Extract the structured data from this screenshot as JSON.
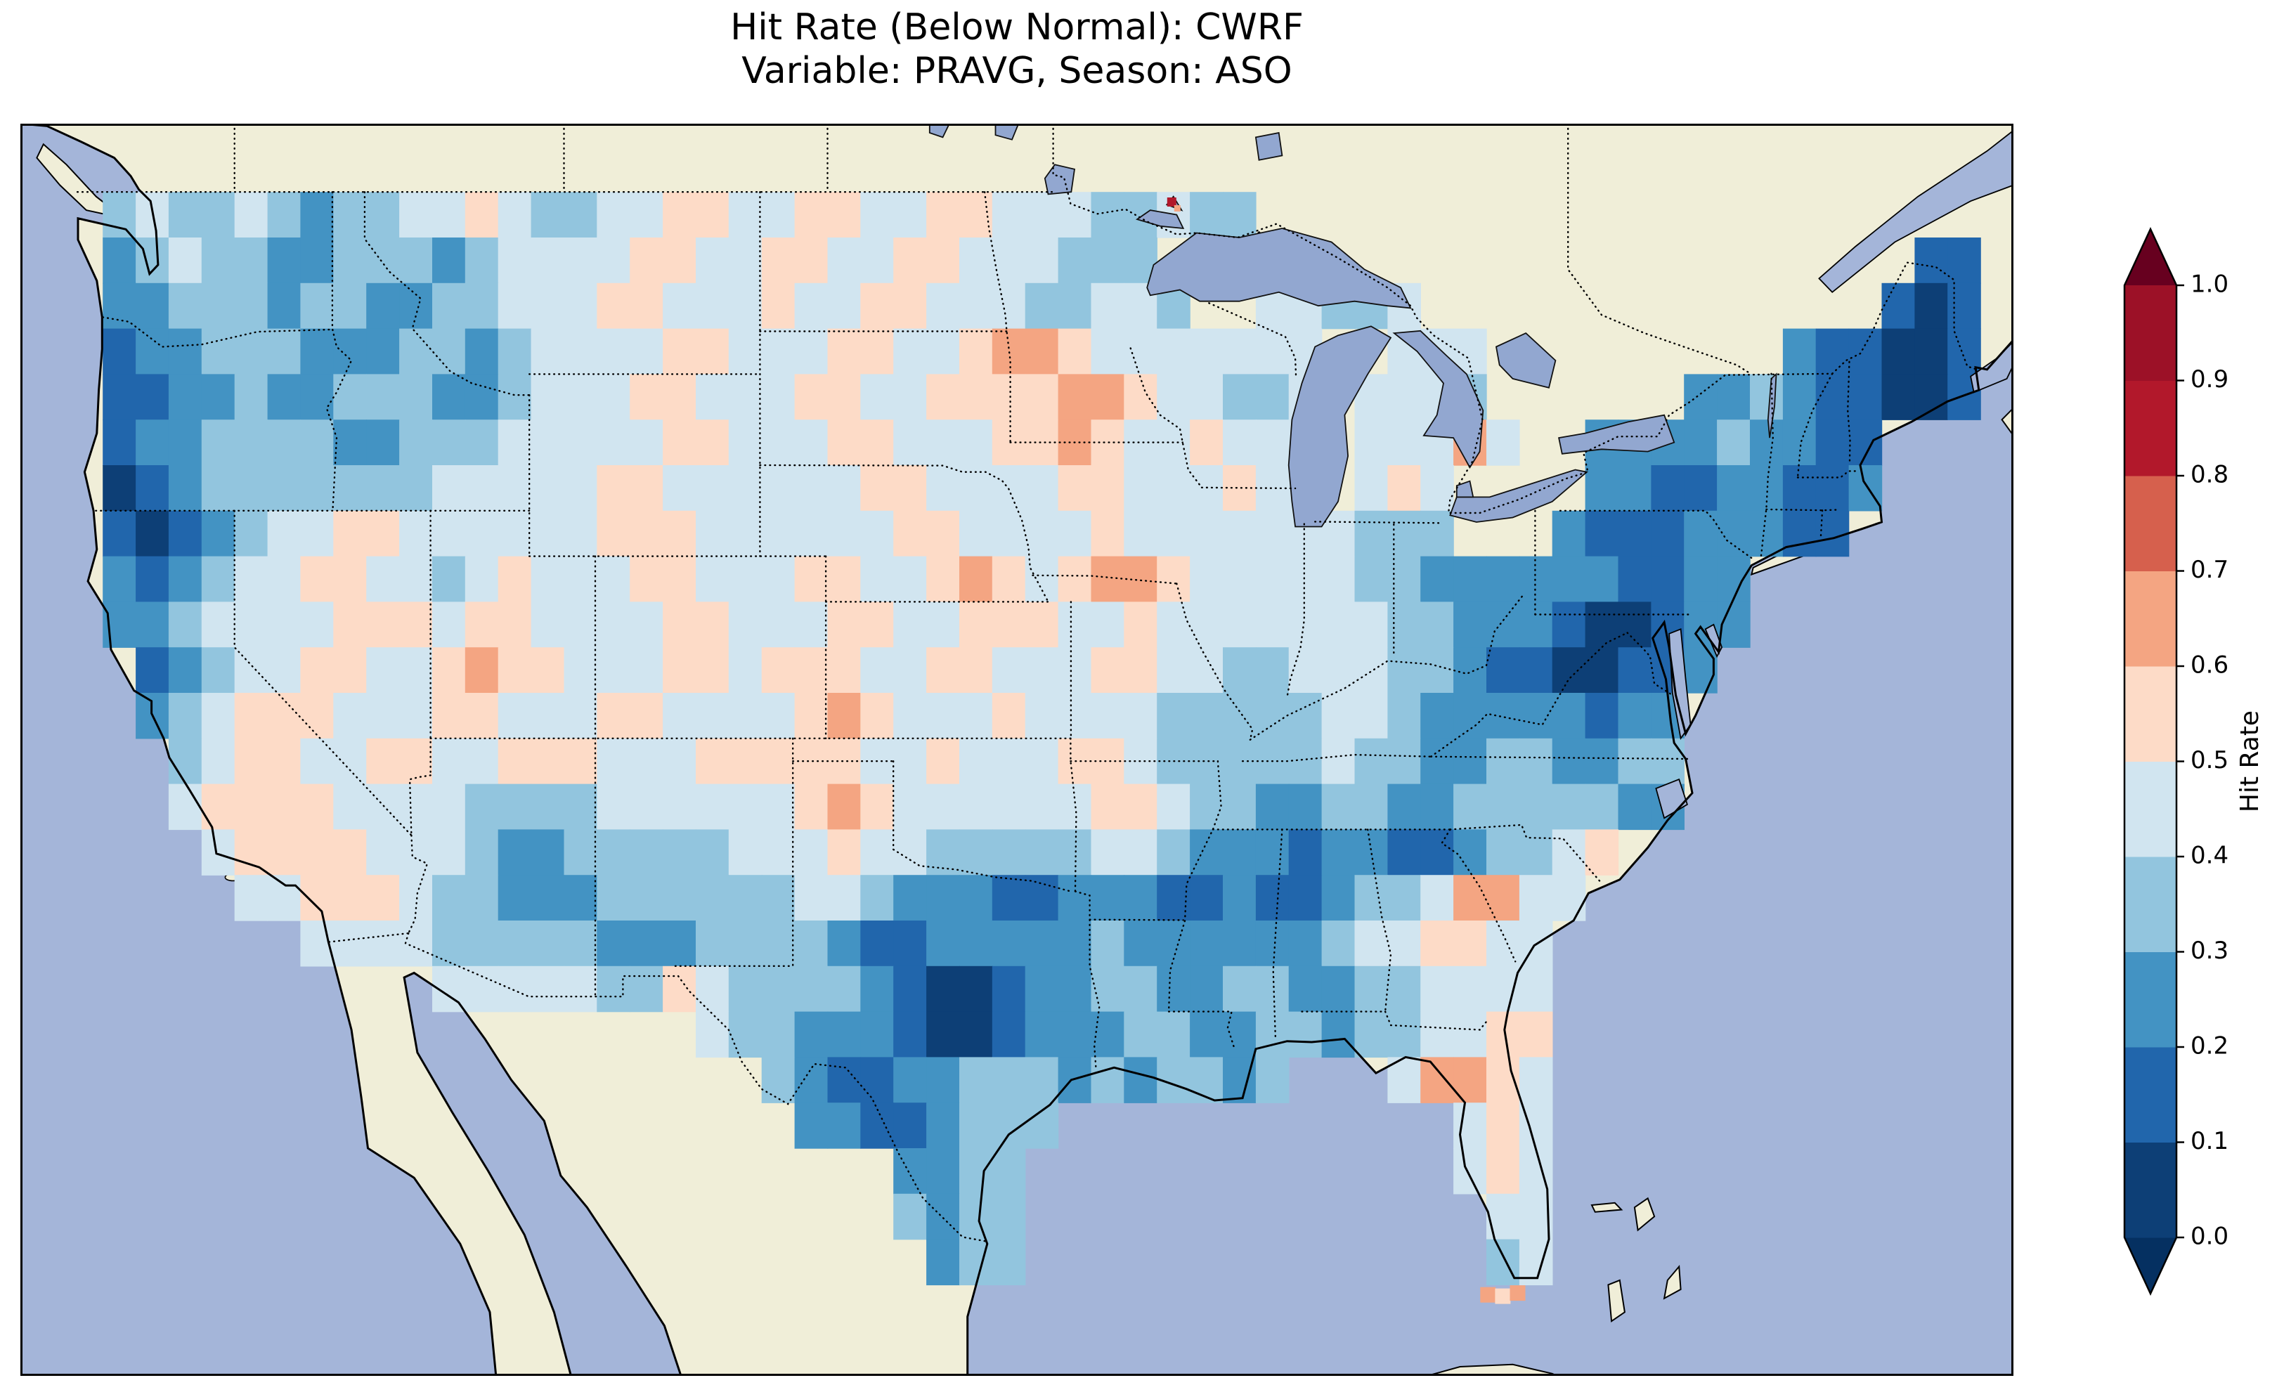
{
  "figure": {
    "title_line1": "Hit Rate (Below Normal): CWRF",
    "title_line2": "Variable: PRAVG, Season: ASO"
  },
  "colorbar": {
    "label": "Hit Rate",
    "tick_labels": [
      "1.0",
      "0.9",
      "0.8",
      "0.7",
      "0.6",
      "0.5",
      "0.4",
      "0.3",
      "0.2",
      "0.1",
      "0.0"
    ],
    "bin_colors": [
      "#0d3f76",
      "#2166ac",
      "#4393c3",
      "#92c5de",
      "#d1e5f0",
      "#fddbc7",
      "#f4a582",
      "#d6604d",
      "#b2182b",
      "#9c1127"
    ],
    "under_color": "#053061",
    "over_color": "#67001f"
  },
  "map_colors": {
    "ocean": "#a4b5d9",
    "land": "#f0eed8",
    "lake": "#92a7d0",
    "coast": "#000000"
  },
  "chart_data": {
    "type": "heatmap",
    "title": "Hit Rate (Below Normal): CWRF",
    "subtitle": "Variable: PRAVG, Season: ASO",
    "model": "CWRF",
    "variable": "PRAVG",
    "season": "ASO",
    "value_name": "Hit Rate",
    "value_range": [
      0.0,
      1.0
    ],
    "bin_width": 0.1,
    "legend_note": "digit d in row strings encodes a hit-rate bin [d*0.1,(d+1)*0.1); colors from colorbar.bin_colors",
    "extent": {
      "lon": [
        -126.5,
        -66.0
      ],
      "lat": [
        23.0,
        50.5
      ]
    },
    "grid": {
      "lon_west_of_col0": -125,
      "lat_top_of_row0": 49,
      "cell_size_deg": 1,
      "rows": [
        [
          [
            1,
            "34334"
          ],
          [
            6,
            "323"
          ],
          [
            9,
            "344543344554"
          ],
          [
            21,
            "45544554"
          ],
          [
            29,
            "4433433"
          ]
        ],
        [
          [
            1,
            "23433"
          ],
          [
            6,
            "223"
          ],
          [
            9,
            "332344445544"
          ],
          [
            21,
            "55445544"
          ],
          [
            29,
            "4333"
          ],
          [
            56,
            "11"
          ]
        ],
        [
          [
            1,
            "22333"
          ],
          [
            6,
            "233"
          ],
          [
            9,
            "223344455444"
          ],
          [
            21,
            "54455444"
          ],
          [
            29,
            "33443"
          ],
          [
            36,
            "44334"
          ],
          [
            55,
            "101"
          ]
        ],
        [
          [
            1,
            "12233"
          ],
          [
            6,
            "322"
          ],
          [
            9,
            "233234444554"
          ],
          [
            21,
            "44554456"
          ],
          [
            29,
            "6544444"
          ],
          [
            36,
            "44"
          ],
          [
            40,
            "444"
          ],
          [
            52,
            "211001"
          ]
        ],
        [
          [
            1,
            "11223"
          ],
          [
            6,
            "223"
          ],
          [
            9,
            "332234445544"
          ],
          [
            21,
            "45544555"
          ],
          [
            29,
            "5665443"
          ],
          [
            36,
            "34"
          ],
          [
            39,
            "4443"
          ],
          [
            49,
            "223"
          ],
          [
            52,
            "211001"
          ]
        ],
        [
          [
            1,
            "12233"
          ],
          [
            6,
            "332"
          ],
          [
            9,
            "233344"
          ],
          [
            15,
            "444554"
          ],
          [
            21,
            "44554445"
          ],
          [
            29,
            "5654454"
          ],
          [
            36,
            "44"
          ],
          [
            39,
            "44464"
          ],
          [
            46,
            "2222322"
          ],
          [
            53,
            "11"
          ]
        ],
        [
          [
            1,
            "01233"
          ],
          [
            6,
            "333"
          ],
          [
            9,
            "334444"
          ],
          [
            15,
            "455444"
          ],
          [
            21,
            "44455444"
          ],
          [
            29,
            "4554445"
          ],
          [
            36,
            "44"
          ],
          [
            39,
            "454"
          ],
          [
            46,
            "221122112"
          ]
        ],
        [
          [
            1,
            "10123"
          ],
          [
            6,
            "44554"
          ],
          [
            11,
            "444"
          ],
          [
            14,
            "4455544"
          ],
          [
            21,
            "44445544"
          ],
          [
            29,
            "4454444"
          ],
          [
            36,
            "444"
          ],
          [
            39,
            "333"
          ],
          [
            45,
            "211122211"
          ]
        ],
        [
          [
            1,
            "21234"
          ],
          [
            6,
            "45544"
          ],
          [
            11,
            "345"
          ],
          [
            14,
            "4445544"
          ],
          [
            21,
            "45544565"
          ],
          [
            29,
            "4566544"
          ],
          [
            36,
            "444332222"
          ],
          [
            45,
            "221122"
          ]
        ],
        [
          [
            1,
            "22344"
          ],
          [
            6,
            "44555"
          ],
          [
            11,
            "455"
          ],
          [
            14,
            "4444554"
          ],
          [
            21,
            "44554455"
          ],
          [
            29,
            "5445444"
          ],
          [
            36,
            "444433222"
          ],
          [
            45,
            "100122"
          ]
        ],
        [
          [
            2,
            "1234"
          ],
          [
            6,
            "45544"
          ],
          [
            11,
            "565"
          ],
          [
            14,
            "5444554"
          ],
          [
            21,
            "55544554"
          ],
          [
            29,
            "4455443"
          ],
          [
            36,
            "344433211"
          ],
          [
            45,
            "00112"
          ]
        ],
        [
          [
            2,
            "2345"
          ],
          [
            6,
            "55444"
          ],
          [
            11,
            "554"
          ],
          [
            14,
            "4455444"
          ],
          [
            21,
            "45654445"
          ],
          [
            29,
            "4444333"
          ],
          [
            36,
            "334432222"
          ],
          [
            45,
            "2122"
          ]
        ],
        [
          [
            3,
            "345"
          ],
          [
            6,
            "54455"
          ],
          [
            11,
            "445"
          ],
          [
            14,
            "5544"
          ],
          [
            18,
            "455"
          ],
          [
            21,
            "55544544"
          ],
          [
            29,
            "4554333"
          ],
          [
            36,
            "334332233"
          ],
          [
            45,
            "2233"
          ]
        ],
        [
          [
            3,
            "455"
          ],
          [
            6,
            "55444"
          ],
          [
            11,
            "433"
          ],
          [
            14,
            "3344"
          ],
          [
            18,
            "444"
          ],
          [
            21,
            "45654444"
          ],
          [
            29,
            "4455433"
          ],
          [
            36,
            "223322333"
          ],
          [
            45,
            "3322"
          ]
        ],
        [
          [
            4,
            "45"
          ],
          [
            6,
            "55544"
          ],
          [
            11,
            "432"
          ],
          [
            14,
            "2333"
          ],
          [
            18,
            "334"
          ],
          [
            21,
            "44544333"
          ],
          [
            29,
            "3344322"
          ],
          [
            36,
            "212211233"
          ],
          [
            45,
            "45"
          ]
        ],
        [
          [
            5,
            "4"
          ],
          [
            6,
            "45554"
          ],
          [
            11,
            "332"
          ],
          [
            14,
            "2233"
          ],
          [
            18,
            "333"
          ],
          [
            21,
            "34432221"
          ],
          [
            29,
            "1222112"
          ],
          [
            36,
            "112334664"
          ],
          [
            45,
            "4"
          ]
        ],
        [
          [
            7,
            "4444"
          ],
          [
            11,
            "333"
          ],
          [
            14,
            "3322"
          ],
          [
            18,
            "233"
          ],
          [
            21,
            "33211222"
          ],
          [
            29,
            "2232222"
          ],
          [
            36,
            "223445544"
          ]
        ],
        [
          [
            11,
            "444"
          ],
          [
            14,
            "4433"
          ],
          [
            18,
            "543"
          ],
          [
            21,
            "33321001"
          ],
          [
            29,
            "2233223"
          ],
          [
            36,
            "3223344"
          ],
          [
            43,
            "44"
          ]
        ],
        [
          [
            19,
            "43"
          ],
          [
            21,
            "32221001"
          ],
          [
            29,
            "2223322"
          ],
          [
            36,
            "332334455"
          ]
        ],
        [
          [
            21,
            "32112233"
          ],
          [
            29,
            "32323323"
          ],
          [
            40,
            "46654"
          ]
        ],
        [
          [
            22,
            "22112333"
          ],
          [
            42,
            "454"
          ]
        ],
        [
          [
            25,
            "2233"
          ],
          [
            42,
            "454"
          ]
        ],
        [
          [
            25,
            "3233"
          ],
          [
            43,
            "44"
          ]
        ],
        [
          [
            26,
            "233"
          ],
          [
            43,
            "34"
          ]
        ]
      ]
    },
    "markers": [
      {
        "lon": -91.55,
        "lat": 48.78,
        "bin": 8,
        "size": 13
      },
      {
        "lon": -91.38,
        "lat": 48.64,
        "bin": 6,
        "size": 9
      },
      {
        "lon": -81.95,
        "lat": 24.78,
        "bin": 6,
        "size": 22
      },
      {
        "lon": -81.5,
        "lat": 24.75,
        "bin": 5,
        "size": 22
      },
      {
        "lon": -81.05,
        "lat": 24.82,
        "bin": 6,
        "size": 22
      }
    ]
  }
}
